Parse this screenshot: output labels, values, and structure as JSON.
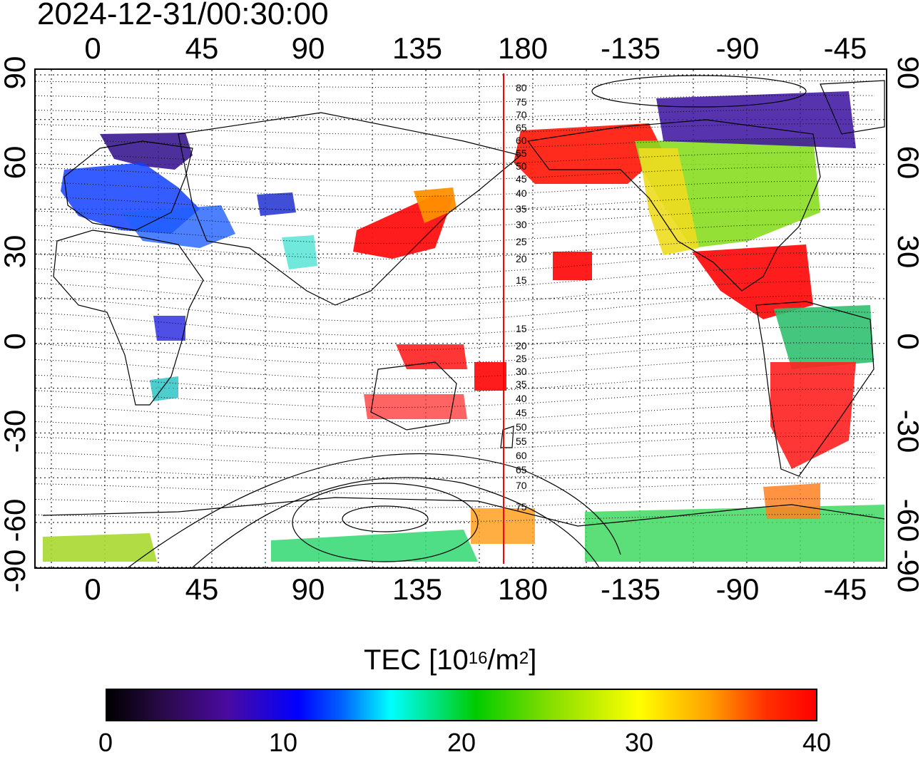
{
  "title": "2024-12-31/00:30:00",
  "map": {
    "x_tick_labels": [
      "0",
      "45",
      "90",
      "135",
      "180",
      "-135",
      "-90",
      "-45"
    ],
    "y_tick_labels": [
      "90",
      "60",
      "30",
      "0",
      "-30",
      "-60",
      "-90"
    ],
    "contour_labels_north": [
      "80",
      "75",
      "70",
      "65",
      "60",
      "55",
      "50",
      "45",
      "40",
      "35",
      "30",
      "25",
      "20",
      "15"
    ],
    "contour_labels_south": [
      "15",
      "20",
      "25",
      "30",
      "35",
      "40",
      "45",
      "50",
      "55",
      "60",
      "65",
      "70",
      "75"
    ],
    "grid": true,
    "terminator_line_color": "#ff0000"
  },
  "colorbar": {
    "title_prefix": "TEC  [10",
    "title_exp1": "16",
    "title_mid": "/m",
    "title_exp2": "2",
    "title_suffix": "]",
    "tick_labels": [
      "0",
      "10",
      "20",
      "30",
      "40"
    ],
    "range": [
      0,
      40
    ],
    "colors": [
      "#000000",
      "#4a0aa0",
      "#0000ff",
      "#00ffff",
      "#00cc00",
      "#ffff00",
      "#ffa000",
      "#ff0000"
    ]
  }
}
